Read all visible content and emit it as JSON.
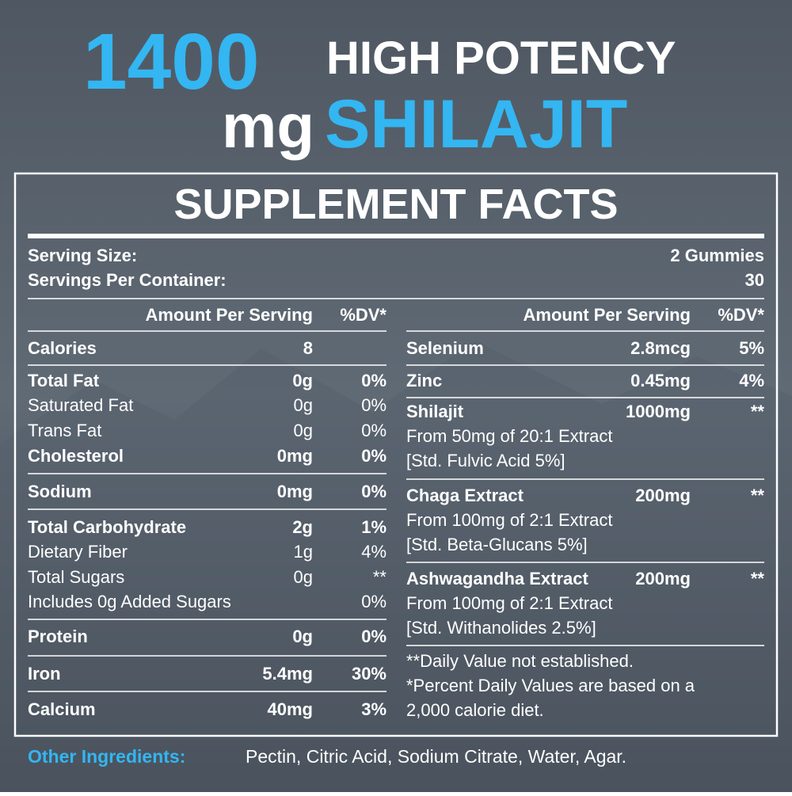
{
  "header": {
    "amount": "1400",
    "unit": "mg",
    "line1": "HIGH POTENCY",
    "line2": "SHILAJIT"
  },
  "panel": {
    "title": "SUPPLEMENT FACTS",
    "serving_size_label": "Serving Size:",
    "serving_size": "2 Gummies",
    "servings_label": "Servings Per Container:",
    "servings": "30",
    "column_header": [
      "Amount Per Serving",
      "%DV*"
    ],
    "left_rows": [
      {
        "name": "Calories",
        "amount": "8",
        "dv": "",
        "bold": true
      },
      {
        "name": "Total Fat",
        "amount": "0g",
        "dv": "0%",
        "bold": true
      },
      {
        "name": "Saturated Fat",
        "amount": "0g",
        "dv": "0%",
        "bold": false
      },
      {
        "name": "Trans Fat",
        "amount": "0g",
        "dv": "0%",
        "bold": false
      },
      {
        "name": "Cholesterol",
        "amount": "0mg",
        "dv": "0%",
        "bold": true
      },
      {
        "name": "Sodium",
        "amount": "0mg",
        "dv": "0%",
        "bold": true
      },
      {
        "name": "Total Carbohydrate",
        "amount": "2g",
        "dv": "1%",
        "bold": true
      },
      {
        "name": "Dietary Fiber",
        "amount": "1g",
        "dv": "4%",
        "bold": false
      },
      {
        "name": "Total Sugars",
        "amount": "0g",
        "dv": "**",
        "bold": false
      },
      {
        "name": "Includes 0g Added Sugars",
        "amount": "",
        "dv": "0%",
        "bold": false
      },
      {
        "name": "Protein",
        "amount": "0g",
        "dv": "0%",
        "bold": true
      },
      {
        "name": "Iron",
        "amount": "5.4mg",
        "dv": "30%",
        "bold": true
      },
      {
        "name": "Calcium",
        "amount": "40mg",
        "dv": "3%",
        "bold": true
      }
    ],
    "right_rows": [
      {
        "name": "Selenium",
        "amount": "2.8mcg",
        "dv": "5%",
        "details": []
      },
      {
        "name": "Zinc",
        "amount": "0.45mg",
        "dv": "4%",
        "details": []
      },
      {
        "name": "Shilajit",
        "amount": "1000mg",
        "dv": "**",
        "details": [
          "From 50mg of 20:1 Extract",
          "[Std. Fulvic Acid 5%]"
        ]
      },
      {
        "name": "Chaga Extract",
        "amount": "200mg",
        "dv": "**",
        "details": [
          "From 100mg of 2:1 Extract",
          "[Std. Beta-Glucans 5%]"
        ]
      },
      {
        "name": "Ashwagandha Extract",
        "amount": "200mg",
        "dv": "**",
        "details": [
          "From 100mg of 2:1 Extract",
          "[Std. Withanolides 2.5%]"
        ]
      }
    ],
    "footnotes": [
      "**Daily Value not established.",
      "*Percent Daily Values are based on a",
      "2,000 calorie diet."
    ]
  },
  "ingredients": {
    "label": "Other Ingredients:",
    "text": "Pectin, Citric Acid, Sodium Citrate, Water, Agar."
  }
}
